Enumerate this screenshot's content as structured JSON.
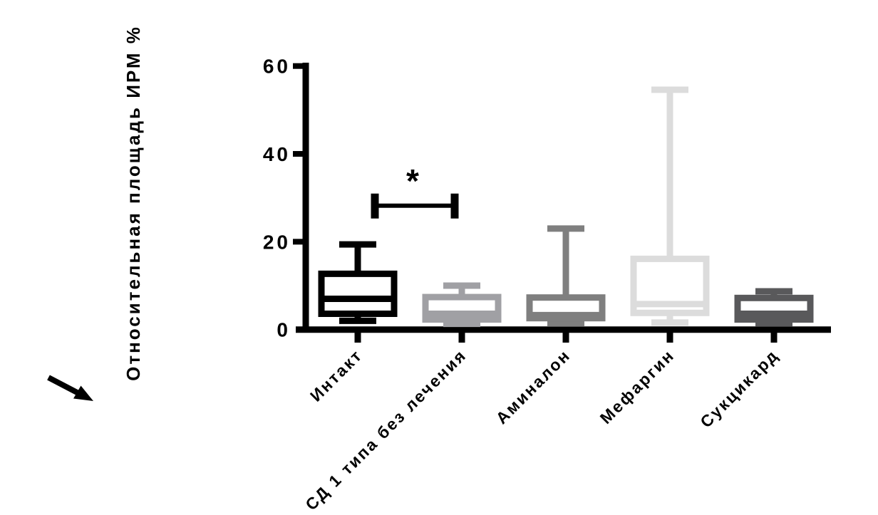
{
  "figure": {
    "background": "#ffffff",
    "axis_color": "#000000"
  },
  "chart_data": {
    "type": "box",
    "title": "",
    "xlabel": "",
    "ylabel": "Относительная площадь ИРМ %",
    "ylim": [
      0,
      60
    ],
    "yticks": [
      0,
      20,
      40,
      60
    ],
    "grid": false,
    "legend": "none",
    "categories": [
      "Интакт",
      "СД 1 типа без лечения",
      "Аминалон",
      "Мефаргин",
      "Сукцикард"
    ],
    "boxes": [
      {
        "category": "Интакт",
        "color": "#000000",
        "whisker_low": 2.0,
        "q1": 3.6,
        "median": 7.0,
        "q3": 12.7,
        "whisker_high": 19.4
      },
      {
        "category": "СД 1 типа без лечения",
        "color": "#a0a0a4",
        "whisker_low": 1.3,
        "q1": 2.3,
        "median": 3.6,
        "q3": 7.4,
        "whisker_high": 10.0
      },
      {
        "category": "Аминалон",
        "color": "#7f7f7f",
        "whisker_low": 1.4,
        "q1": 2.6,
        "median": 3.3,
        "q3": 7.3,
        "whisker_high": 23.0
      },
      {
        "category": "Мефаргин",
        "color": "#dcdcdc",
        "whisker_low": 1.6,
        "q1": 3.8,
        "median": 5.8,
        "q3": 16.1,
        "whisker_high": 54.6
      },
      {
        "category": "Сукцикард",
        "color": "#59595b",
        "whisker_low": 1.4,
        "q1": 2.3,
        "median": 3.6,
        "q3": 7.2,
        "whisker_high": 8.7
      }
    ],
    "significance": {
      "between": [
        "Интакт",
        "СД 1 типа без лечения"
      ],
      "label": "*",
      "bar_value": 28.2,
      "color": "#000000"
    }
  },
  "annotations": {
    "arrow": {
      "kind": "arrow",
      "direction": "down-right",
      "color": "#000000"
    }
  }
}
